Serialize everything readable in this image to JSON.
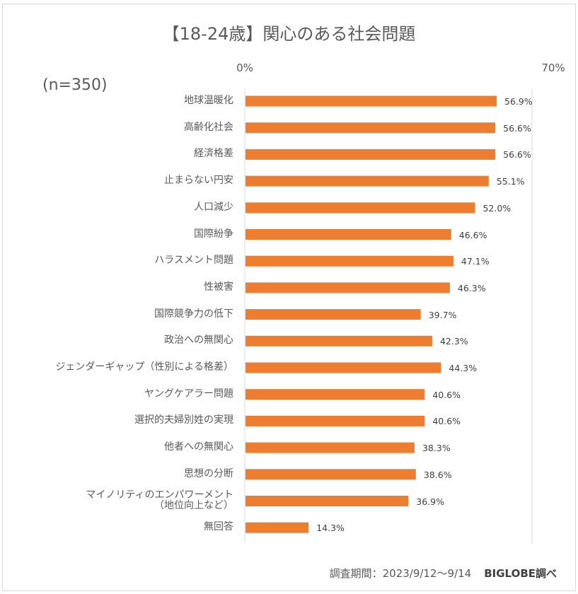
{
  "chart_data": {
    "type": "bar",
    "orientation": "horizontal",
    "title": "【18-24歳】関心のある社会問題",
    "sample_label": "(n=350)",
    "xlabel": "",
    "ylabel": "",
    "xlim": [
      0,
      70
    ],
    "tick_labels": [
      "0%",
      "70%"
    ],
    "grid": false,
    "legend": "none",
    "bar_color": "#ED7D31",
    "unit": "%",
    "categories": [
      "地球温暖化",
      "高齢化社会",
      "経済格差",
      "止まらない円安",
      "人口減少",
      "国際紛争",
      "ハラスメント問題",
      "性被害",
      "国際競争力の低下",
      "政治への無関心",
      "ジェンダーギャップ（性別による格差）",
      "ヤングケアラー問題",
      "選択的夫婦別姓の実現",
      "他者への無関心",
      "思想の分断",
      "マイノリティのエンパワーメント\n（地位向上など）",
      "無回答"
    ],
    "values": [
      56.9,
      56.6,
      56.6,
      55.1,
      52.0,
      46.6,
      47.1,
      46.3,
      39.7,
      42.3,
      44.3,
      40.6,
      40.6,
      38.3,
      38.6,
      36.9,
      14.3
    ],
    "value_labels": [
      "56.9%",
      "56.6%",
      "56.6%",
      "55.1%",
      "52.0%",
      "46.6%",
      "47.1%",
      "46.3%",
      "39.7%",
      "42.3%",
      "44.3%",
      "40.6%",
      "40.6%",
      "38.3%",
      "38.6%",
      "36.9%",
      "14.3%"
    ]
  },
  "footer": {
    "period": "調査期間：2023/9/12～9/14",
    "source": "BIGLOBE調べ"
  }
}
